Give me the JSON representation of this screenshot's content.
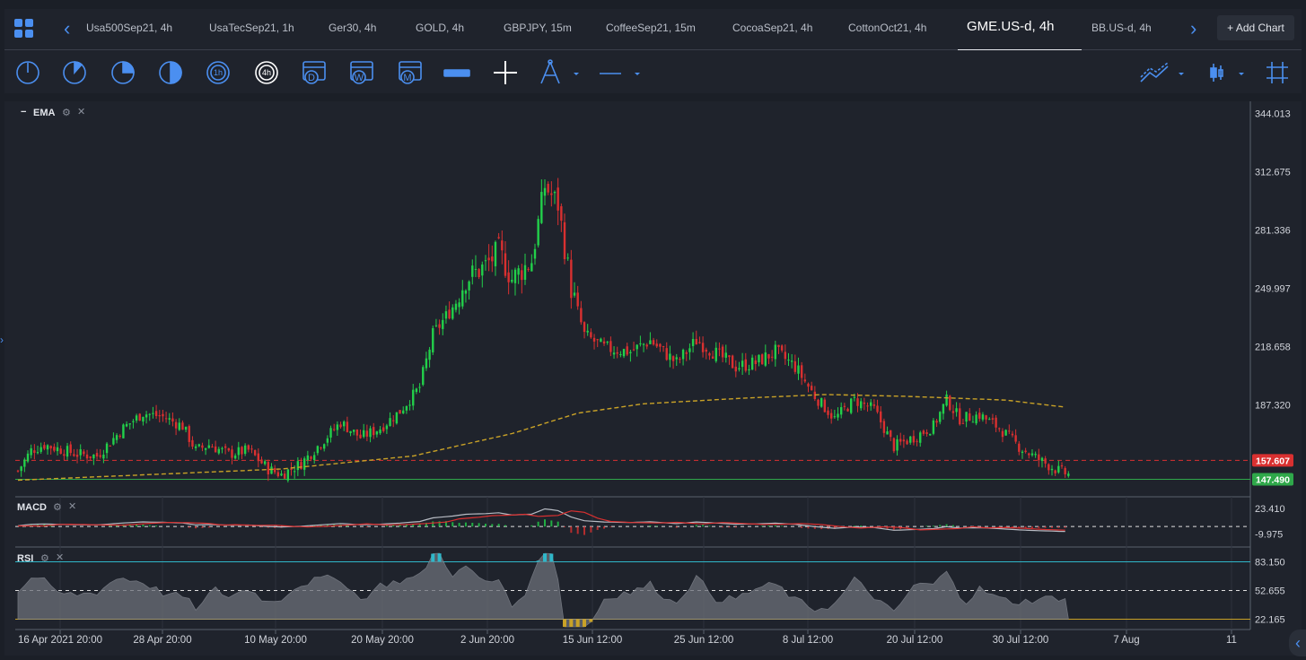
{
  "tabs": [
    {
      "label": "Usa500Sep21, 4h",
      "active": false
    },
    {
      "label": "UsaTecSep21, 1h",
      "active": false
    },
    {
      "label": "Ger30, 4h",
      "active": false
    },
    {
      "label": "GOLD, 4h",
      "active": false
    },
    {
      "label": "GBPJPY, 15m",
      "active": false
    },
    {
      "label": "CoffeeSep21, 15m",
      "active": false
    },
    {
      "label": "CocoaSep21, 4h",
      "active": false
    },
    {
      "label": "CottonOct21, 4h",
      "active": false
    },
    {
      "label": "GME.US-d, 4h",
      "active": true
    },
    {
      "label": "BB.US-d, 4h",
      "active": false
    }
  ],
  "add_chart_label": "+ Add Chart",
  "toolbar": {
    "period_icons": [
      "period-1-icon",
      "period-2-icon",
      "period-3-icon",
      "period-4-icon",
      "1h",
      "4h",
      "D",
      "W",
      "M"
    ],
    "selected_period": "4h"
  },
  "colors": {
    "accent": "#4b8ff0",
    "bull": "#22d04a",
    "bear": "#d93030",
    "ema": "#c9a227",
    "bid_line": "#d93030",
    "ask_line": "#2fa84a",
    "rsi_band": "#2fb7c9"
  },
  "panes": {
    "main_label": "EMA",
    "macd_label": "MACD",
    "rsi_label": "RSI"
  },
  "chart_data": [
    {
      "type": "candlestick",
      "title": "GME.US-d, 4h",
      "indicator": "EMA",
      "y_ticks": [
        "344.013",
        "312.675",
        "281.336",
        "249.997",
        "218.658",
        "187.320"
      ],
      "ylim": [
        140,
        348
      ],
      "price_markers": [
        {
          "label": "157.607",
          "value": 157.607,
          "color": "#d93030"
        },
        {
          "label": "147.490",
          "value": 147.49,
          "color": "#2fa84a"
        }
      ],
      "x_ticks": [
        "16 Apr 2021 20:00",
        "28 Apr 20:00",
        "10 May 20:00",
        "20 May 20:00",
        "2 Jun 20:00",
        "15 Jun 12:00",
        "25 Jun 12:00",
        "8 Jul 12:00",
        "20 Jul 12:00",
        "30 Jul 12:00",
        "7 Aug",
        "11"
      ],
      "close_path": [
        {
          "i": 0,
          "v": 152
        },
        {
          "i": 4,
          "v": 163
        },
        {
          "i": 8,
          "v": 166
        },
        {
          "i": 12,
          "v": 164
        },
        {
          "i": 18,
          "v": 161
        },
        {
          "i": 24,
          "v": 160
        },
        {
          "i": 32,
          "v": 175
        },
        {
          "i": 38,
          "v": 183
        },
        {
          "i": 44,
          "v": 181
        },
        {
          "i": 50,
          "v": 176
        },
        {
          "i": 54,
          "v": 163
        },
        {
          "i": 58,
          "v": 166
        },
        {
          "i": 64,
          "v": 161
        },
        {
          "i": 70,
          "v": 163
        },
        {
          "i": 76,
          "v": 153
        },
        {
          "i": 80,
          "v": 150
        },
        {
          "i": 86,
          "v": 156
        },
        {
          "i": 92,
          "v": 167
        },
        {
          "i": 98,
          "v": 178
        },
        {
          "i": 104,
          "v": 170
        },
        {
          "i": 110,
          "v": 175
        },
        {
          "i": 116,
          "v": 184
        },
        {
          "i": 122,
          "v": 197
        },
        {
          "i": 126,
          "v": 225
        },
        {
          "i": 132,
          "v": 240
        },
        {
          "i": 136,
          "v": 255
        },
        {
          "i": 142,
          "v": 262
        },
        {
          "i": 146,
          "v": 270
        },
        {
          "i": 150,
          "v": 255
        },
        {
          "i": 156,
          "v": 265
        },
        {
          "i": 160,
          "v": 305
        },
        {
          "i": 164,
          "v": 295
        },
        {
          "i": 168,
          "v": 250
        },
        {
          "i": 172,
          "v": 225
        },
        {
          "i": 178,
          "v": 218
        },
        {
          "i": 186,
          "v": 216
        },
        {
          "i": 192,
          "v": 222
        },
        {
          "i": 200,
          "v": 210
        },
        {
          "i": 206,
          "v": 222
        },
        {
          "i": 212,
          "v": 215
        },
        {
          "i": 218,
          "v": 208
        },
        {
          "i": 224,
          "v": 210
        },
        {
          "i": 230,
          "v": 216
        },
        {
          "i": 236,
          "v": 208
        },
        {
          "i": 242,
          "v": 192
        },
        {
          "i": 248,
          "v": 180
        },
        {
          "i": 254,
          "v": 190
        },
        {
          "i": 260,
          "v": 185
        },
        {
          "i": 266,
          "v": 165
        },
        {
          "i": 272,
          "v": 170
        },
        {
          "i": 278,
          "v": 176
        },
        {
          "i": 282,
          "v": 190
        },
        {
          "i": 286,
          "v": 180
        },
        {
          "i": 292,
          "v": 182
        },
        {
          "i": 298,
          "v": 175
        },
        {
          "i": 304,
          "v": 165
        },
        {
          "i": 310,
          "v": 158
        },
        {
          "i": 316,
          "v": 152
        },
        {
          "i": 319,
          "v": 150
        }
      ],
      "count": 320,
      "ema_path": [
        {
          "i": 0,
          "v": 147
        },
        {
          "i": 40,
          "v": 150
        },
        {
          "i": 80,
          "v": 153
        },
        {
          "i": 120,
          "v": 160
        },
        {
          "i": 150,
          "v": 172
        },
        {
          "i": 170,
          "v": 183
        },
        {
          "i": 190,
          "v": 188
        },
        {
          "i": 220,
          "v": 191
        },
        {
          "i": 245,
          "v": 193
        },
        {
          "i": 270,
          "v": 192
        },
        {
          "i": 300,
          "v": 190
        },
        {
          "i": 319,
          "v": 186
        }
      ]
    },
    {
      "type": "line",
      "title": "MACD",
      "y_ticks": [
        "23.410",
        "-9.975"
      ],
      "ylim": [
        -22,
        34
      ]
    },
    {
      "type": "area",
      "title": "RSI",
      "y_ticks": [
        "83.150",
        "52.655",
        "22.165"
      ],
      "ylim": [
        15,
        95
      ]
    }
  ]
}
